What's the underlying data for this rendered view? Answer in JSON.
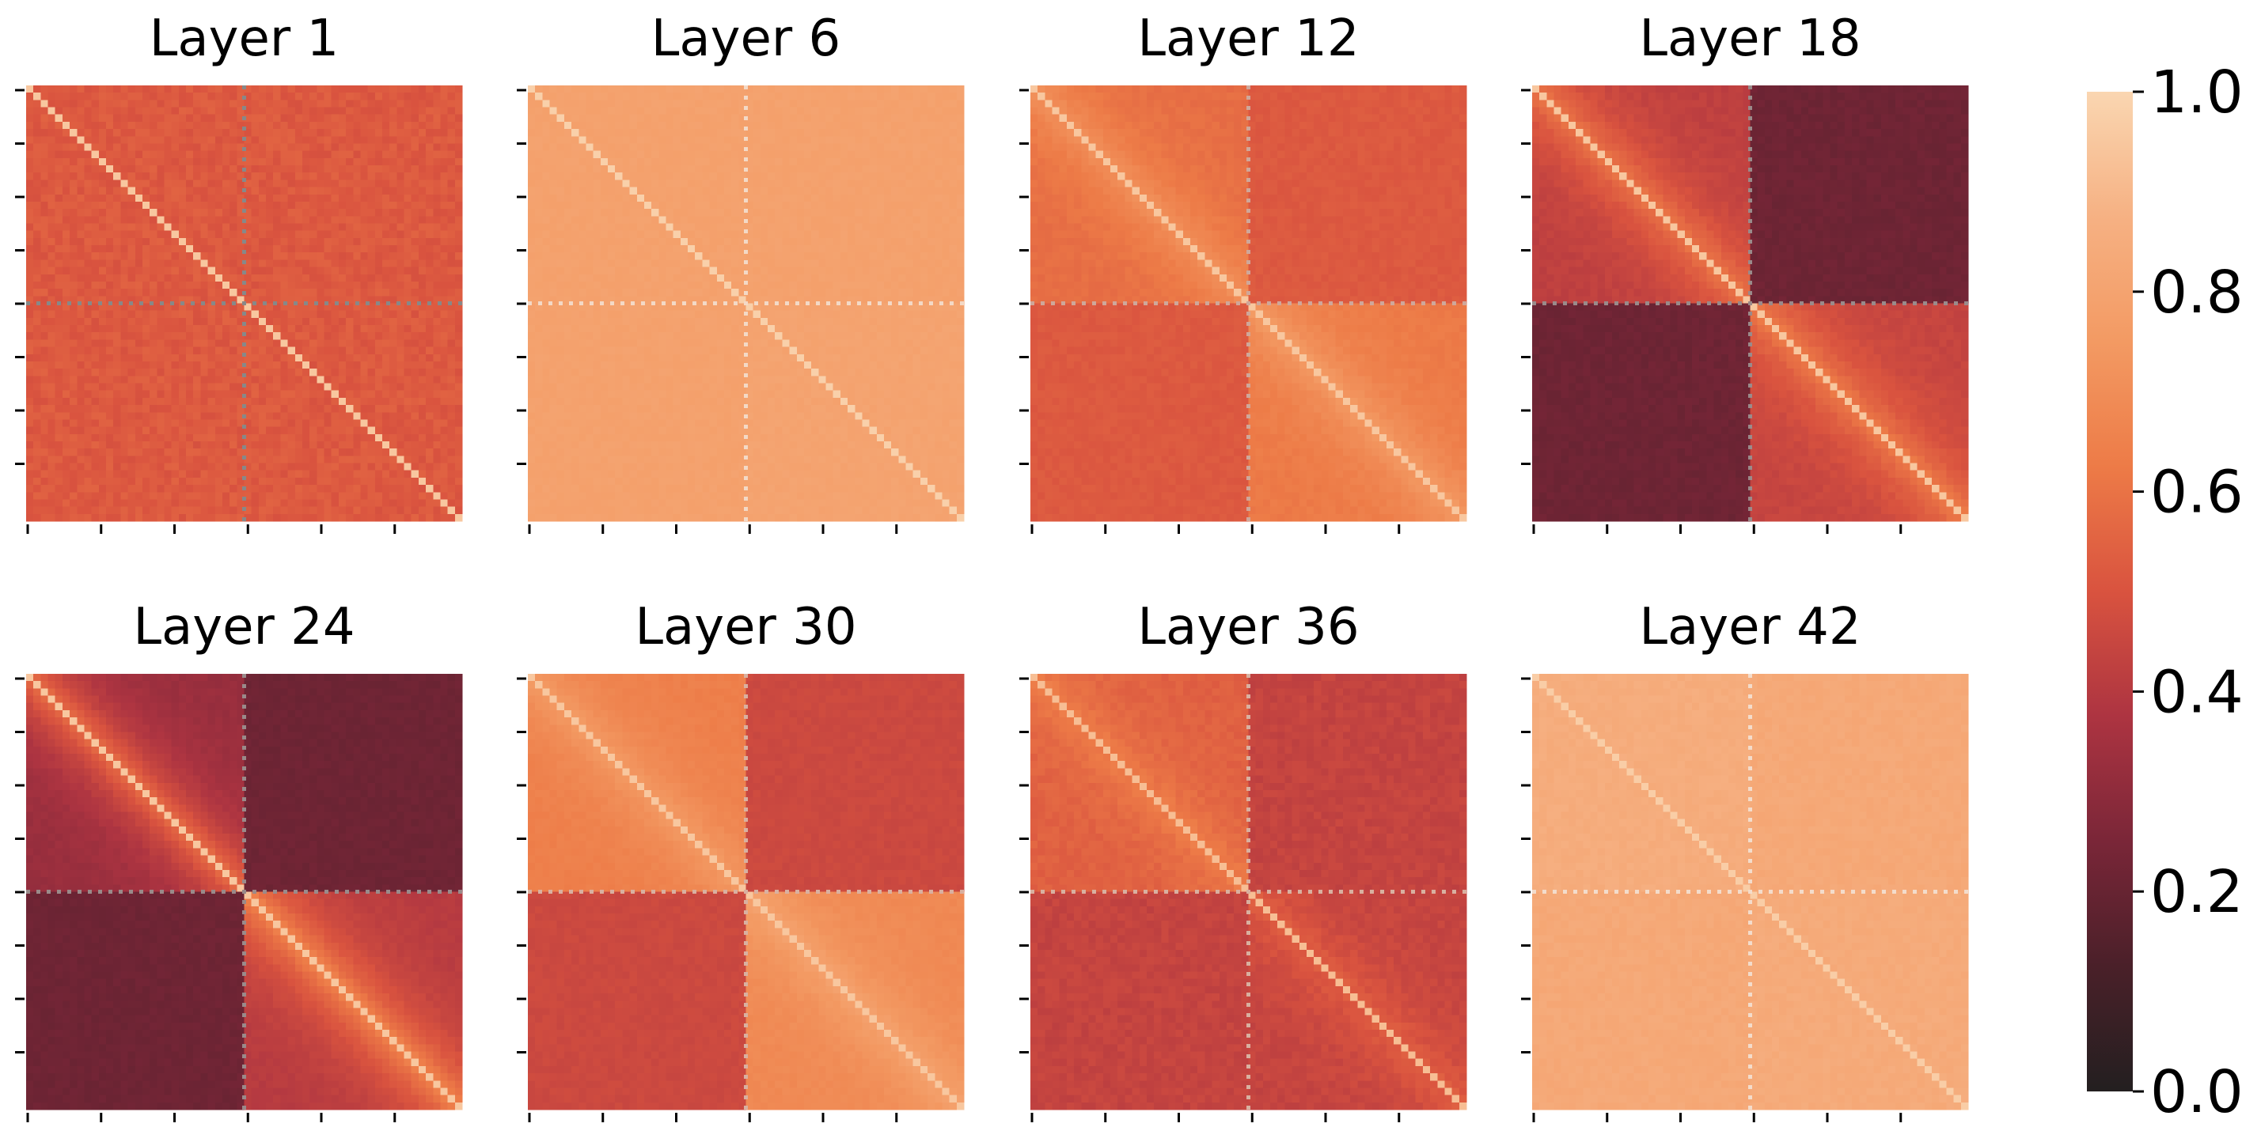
{
  "chart_data": {
    "type": "heatmap",
    "n_cells": 60,
    "split_index": 30,
    "n_x_ticks": 6,
    "n_y_ticks": 8,
    "colormap": [
      "#231f20",
      "#4a2029",
      "#7a2638",
      "#ad3441",
      "#d9533f",
      "#ed7b47",
      "#f39a63",
      "#f6b183",
      "#fad6b1"
    ],
    "colorbar": {
      "vmin": 0.0,
      "vmax": 1.0,
      "ticks": [
        {
          "value": 0.0,
          "label": "0.0"
        },
        {
          "value": 0.2,
          "label": "0.2"
        },
        {
          "value": 0.4,
          "label": "0.4"
        },
        {
          "value": 0.6,
          "label": "0.6"
        },
        {
          "value": 0.8,
          "label": "0.8"
        },
        {
          "value": 1.0,
          "label": "1.0"
        }
      ]
    },
    "panels": [
      {
        "title": "Layer 1",
        "diagonal": 0.95,
        "tl_block": 0.52,
        "br_block": 0.52,
        "off_block": 0.52,
        "near_boost": 0.0,
        "band_value": 0.35,
        "noise": 0.03,
        "line_color": "#888888"
      },
      {
        "title": "Layer 6",
        "diagonal": 0.98,
        "tl_block": 0.79,
        "br_block": 0.8,
        "off_block": 0.79,
        "near_boost": 0.0,
        "band_value": 0.87,
        "noise": 0.01,
        "line_color": "#f3d9c6"
      },
      {
        "title": "Layer 12",
        "diagonal": 0.95,
        "tl_block": 0.58,
        "br_block": 0.62,
        "off_block": 0.52,
        "near_boost": 0.14,
        "band_value": 0.66,
        "noise": 0.015,
        "line_color": "#cfa79a"
      },
      {
        "title": "Layer 18",
        "diagonal": 0.95,
        "tl_block": 0.42,
        "br_block": 0.44,
        "off_block": 0.22,
        "near_boost": 0.2,
        "band_value": 0.36,
        "noise": 0.015,
        "line_color": "#9a8a8a"
      },
      {
        "title": "Layer 24",
        "diagonal": 0.95,
        "tl_block": 0.32,
        "br_block": 0.4,
        "off_block": 0.22,
        "near_boost": 0.28,
        "band_value": 0.3,
        "noise": 0.012,
        "line_color": "#9a8a8a"
      },
      {
        "title": "Layer 30",
        "diagonal": 0.95,
        "tl_block": 0.64,
        "br_block": 0.68,
        "off_block": 0.46,
        "near_boost": 0.12,
        "band_value": 0.58,
        "noise": 0.012,
        "line_color": "#d9b0a0"
      },
      {
        "title": "Layer 36",
        "diagonal": 0.92,
        "tl_block": 0.54,
        "br_block": 0.44,
        "off_block": 0.44,
        "near_boost": 0.1,
        "band_value": 0.48,
        "noise": 0.02,
        "line_color": "#d9b0a0"
      },
      {
        "title": "Layer 42",
        "diagonal": 0.97,
        "tl_block": 0.85,
        "br_block": 0.84,
        "off_block": 0.83,
        "near_boost": 0.0,
        "band_value": 0.89,
        "noise": 0.015,
        "line_color": "#f3dccb"
      }
    ]
  }
}
